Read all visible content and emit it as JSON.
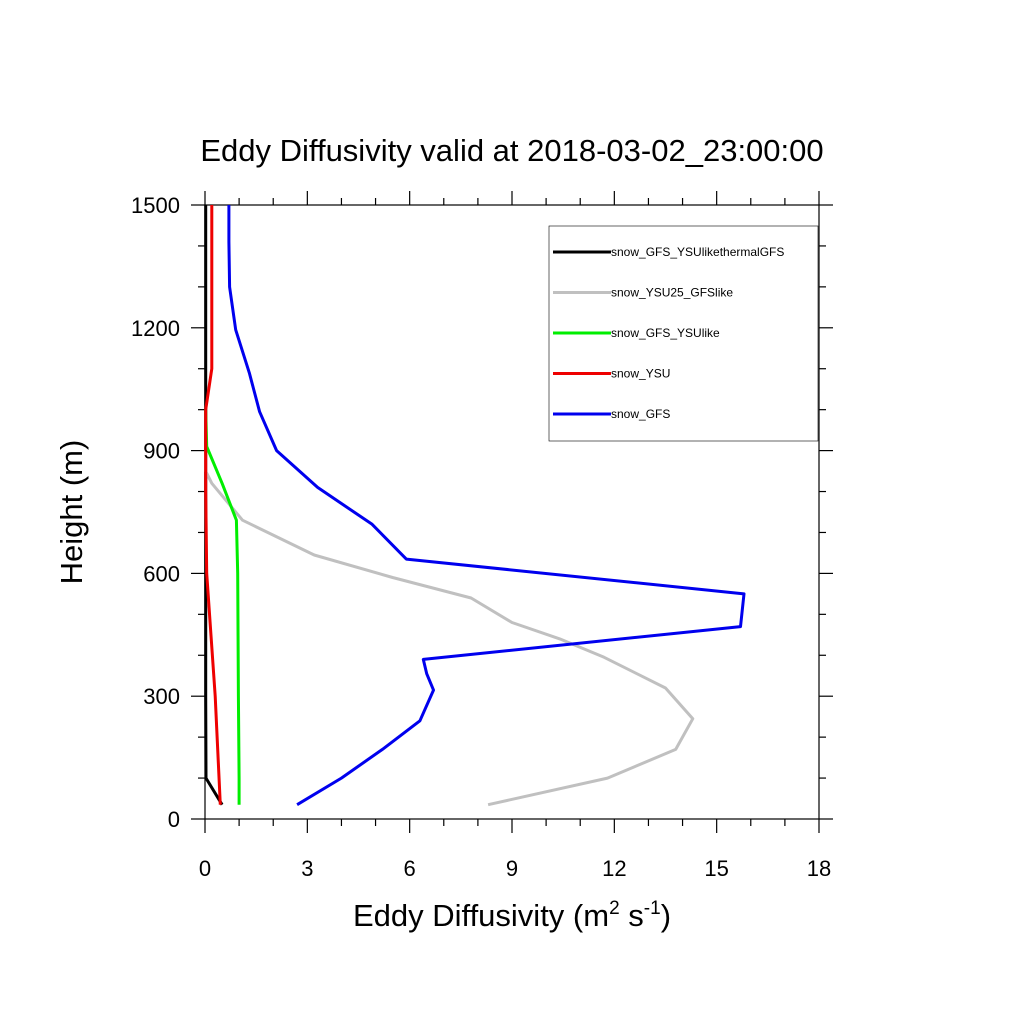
{
  "chart_data": {
    "type": "line",
    "title": "Eddy Diffusivity valid at 2018-03-02_23:00:00",
    "xlabel": {
      "base": "Eddy Diffusivity (m",
      "sup1": "2",
      "mid": " s",
      "sup2": "-1",
      "end": ")"
    },
    "ylabel": "Height (m)",
    "xlim": [
      0,
      18
    ],
    "ylim": [
      0,
      1500
    ],
    "xticks": [
      0,
      3,
      6,
      9,
      12,
      15,
      18
    ],
    "yticks": [
      0,
      300,
      600,
      900,
      1200,
      1500
    ],
    "xtick_labels": [
      "0",
      "3",
      "6",
      "9",
      "12",
      "15",
      "18"
    ],
    "ytick_labels": [
      "0",
      "300",
      "600",
      "900",
      "1200",
      "1500"
    ],
    "legend_position": "top-right",
    "series": [
      {
        "name": "snow_GFS_YSUlikethermalGFS",
        "color": "#000000",
        "points": [
          [
            0.5,
            35
          ],
          [
            0.03,
            100
          ],
          [
            0.02,
            300
          ],
          [
            0.02,
            600
          ],
          [
            0.02,
            900
          ],
          [
            0.02,
            1200
          ],
          [
            0.02,
            1500
          ]
        ]
      },
      {
        "name": "snow_YSU25_GFSlike",
        "color": "#c0c0c0",
        "points": [
          [
            8.3,
            35
          ],
          [
            11.8,
            100
          ],
          [
            13.8,
            170
          ],
          [
            14.3,
            245
          ],
          [
            13.5,
            320
          ],
          [
            11.7,
            395
          ],
          [
            10.4,
            440
          ],
          [
            9.0,
            480
          ],
          [
            7.8,
            540
          ],
          [
            5.5,
            590
          ],
          [
            3.2,
            645
          ],
          [
            1.1,
            730
          ],
          [
            0.2,
            820
          ],
          [
            0.02,
            850
          ],
          [
            0.02,
            900
          ]
        ]
      },
      {
        "name": "snow_GFS_YSUlike",
        "color": "#00ee00",
        "points": [
          [
            1.0,
            35
          ],
          [
            1.0,
            100
          ],
          [
            0.98,
            300
          ],
          [
            0.96,
            600
          ],
          [
            0.92,
            730
          ],
          [
            0.5,
            820
          ],
          [
            0.05,
            910
          ],
          [
            0.02,
            1000
          ]
        ]
      },
      {
        "name": "snow_YSU",
        "color": "#ee0000",
        "points": [
          [
            0.45,
            35
          ],
          [
            0.3,
            300
          ],
          [
            0.05,
            600
          ],
          [
            0.02,
            800
          ],
          [
            0.02,
            1000
          ],
          [
            0.2,
            1100
          ],
          [
            0.2,
            1200
          ],
          [
            0.2,
            1500
          ]
        ]
      },
      {
        "name": "snow_GFS",
        "color": "#0000ee",
        "points": [
          [
            2.7,
            35
          ],
          [
            4.0,
            100
          ],
          [
            5.2,
            170
          ],
          [
            6.3,
            240
          ],
          [
            6.7,
            315
          ],
          [
            6.5,
            355
          ],
          [
            6.4,
            390
          ],
          [
            15.7,
            470
          ],
          [
            15.8,
            550
          ],
          [
            5.9,
            635
          ],
          [
            4.9,
            720
          ],
          [
            3.3,
            810
          ],
          [
            2.1,
            900
          ],
          [
            1.6,
            995
          ],
          [
            1.3,
            1090
          ],
          [
            0.9,
            1195
          ],
          [
            0.72,
            1300
          ],
          [
            0.7,
            1410
          ],
          [
            0.7,
            1500
          ]
        ]
      }
    ]
  }
}
